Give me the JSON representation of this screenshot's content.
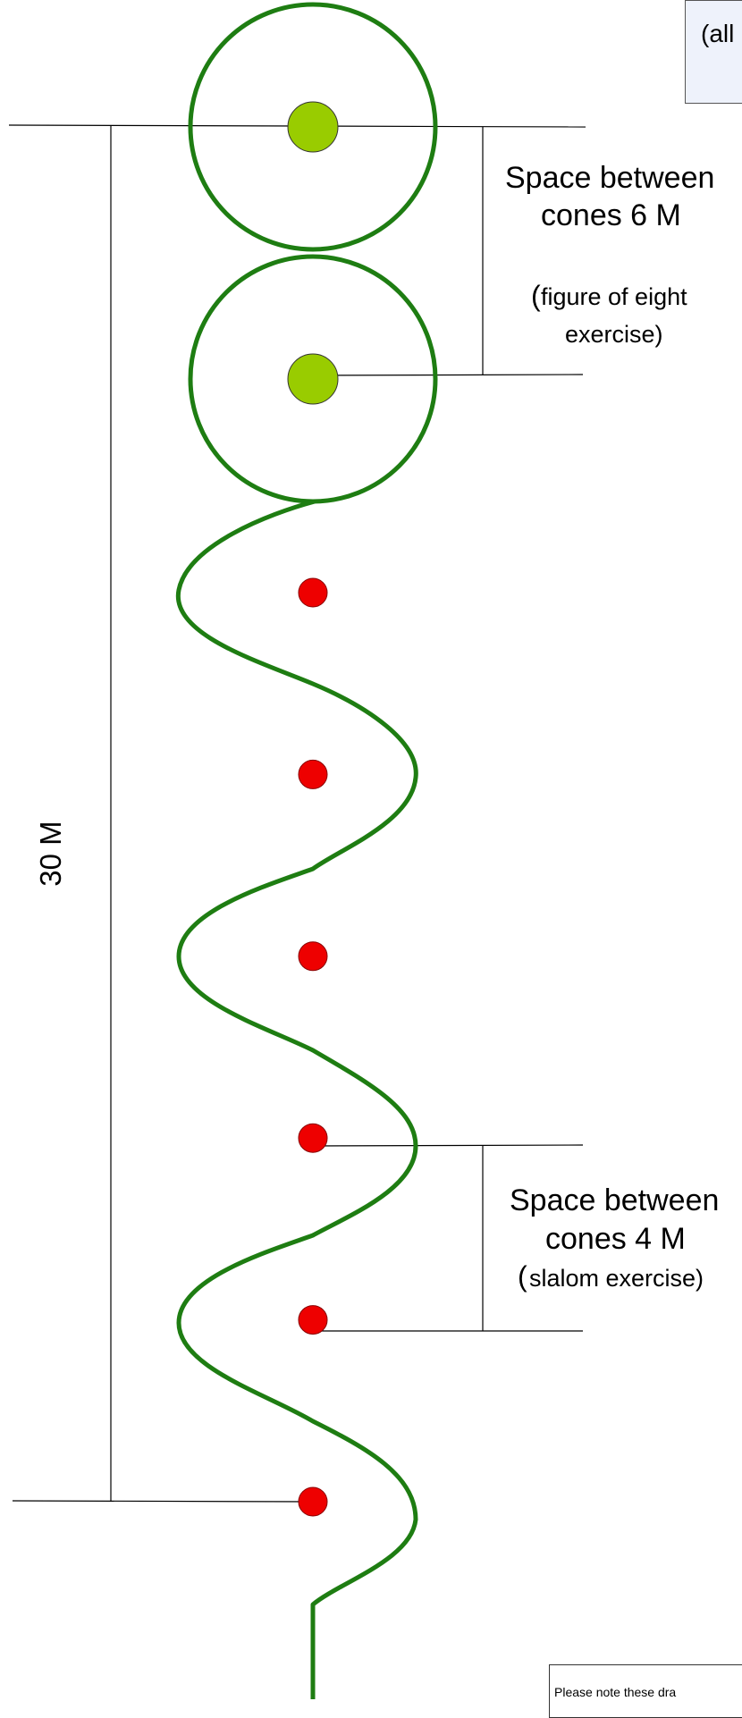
{
  "top_box": {
    "text": "(all"
  },
  "figure8": {
    "title": "Space between",
    "spacing": "cones 6 M",
    "paren": "(",
    "note1": "figure of eight",
    "note2": "exercise)"
  },
  "slalom": {
    "title": "Space between",
    "spacing": "cones 4 M",
    "paren": "(",
    "note": "slalom exercise)"
  },
  "total_length": "30 M",
  "footer_note": "Please note these dra",
  "colors": {
    "path": "#1e7d12",
    "slalom_cone": "#ee0000",
    "figure8_cone": "#99cc00",
    "line": "#000000"
  },
  "slalom_cone_count": 6,
  "figure8_cone_count": 2
}
